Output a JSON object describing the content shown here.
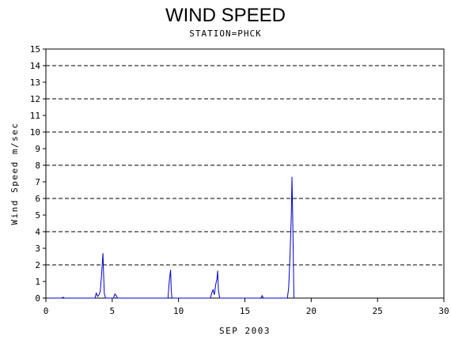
{
  "chart_data": {
    "type": "line",
    "title": "WIND SPEED",
    "subtitle": "STATION=PHCK",
    "xlabel": "SEP 2003",
    "ylabel": "Wind Speed m/sec",
    "xlim": [
      0,
      30
    ],
    "ylim": [
      0,
      15
    ],
    "x_ticks": [
      0,
      5,
      10,
      15,
      20,
      25,
      30
    ],
    "y_ticks": [
      0,
      1,
      2,
      3,
      4,
      5,
      6,
      7,
      8,
      9,
      10,
      11,
      12,
      13,
      14,
      15
    ],
    "gridlines_y": [
      2,
      4,
      6,
      8,
      10,
      12,
      14
    ],
    "grid": "horizontal dashed",
    "series": [
      {
        "color": "#0000cc",
        "points": [
          [
            0.2,
            0
          ],
          [
            1.2,
            0
          ],
          [
            1.3,
            0.05
          ],
          [
            1.4,
            0
          ],
          [
            3.7,
            0
          ],
          [
            3.8,
            0.3
          ],
          [
            3.9,
            0.1
          ],
          [
            4.0,
            0.2
          ],
          [
            4.1,
            0.4
          ],
          [
            4.2,
            1.4
          ],
          [
            4.3,
            2.7
          ],
          [
            4.35,
            1.5
          ],
          [
            4.4,
            0.3
          ],
          [
            4.5,
            0
          ],
          [
            5.1,
            0
          ],
          [
            5.2,
            0.25
          ],
          [
            5.3,
            0.15
          ],
          [
            5.4,
            0
          ],
          [
            9.2,
            0
          ],
          [
            9.3,
            1.0
          ],
          [
            9.4,
            1.7
          ],
          [
            9.45,
            0.5
          ],
          [
            9.5,
            0
          ],
          [
            12.4,
            0
          ],
          [
            12.5,
            0.3
          ],
          [
            12.6,
            0.5
          ],
          [
            12.7,
            0.2
          ],
          [
            12.8,
            0.8
          ],
          [
            12.9,
            1.2
          ],
          [
            12.95,
            1.65
          ],
          [
            13.0,
            0.5
          ],
          [
            13.1,
            0
          ],
          [
            16.2,
            0
          ],
          [
            16.3,
            0.15
          ],
          [
            16.4,
            0
          ],
          [
            18.2,
            0
          ],
          [
            18.3,
            0.6
          ],
          [
            18.4,
            2.5
          ],
          [
            18.5,
            5.0
          ],
          [
            18.55,
            7.3
          ],
          [
            18.6,
            5.0
          ],
          [
            18.7,
            0
          ]
        ]
      }
    ]
  }
}
